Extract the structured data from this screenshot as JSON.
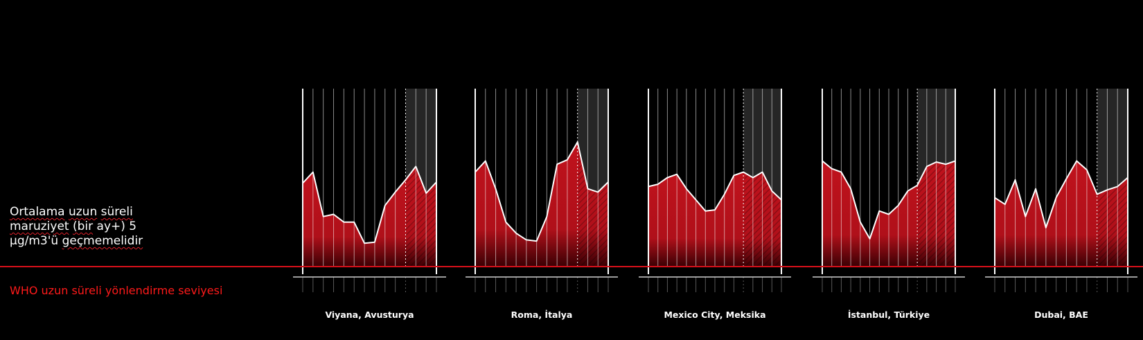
{
  "left_annotation": {
    "line1_words": [
      "Ortalama",
      "uzun",
      "süreli"
    ],
    "line2_words": [
      "maruziyet",
      "(bir",
      "ay+)",
      "5"
    ],
    "line3_words": [
      "µg/m3'ü",
      "geçmemelidir"
    ]
  },
  "who_label": "WHO uzun süreli yönlendirme seviyesi",
  "colors": {
    "background": "#000000",
    "area_fill": "#c0121c",
    "area_dark": "#7a0008",
    "line": "#ffffff",
    "threshold_line": "#d8101a",
    "who_text": "#ff1a1a"
  },
  "chart_data": [
    {
      "type": "area",
      "city": "Viyana, Avusturya",
      "values": [
        75,
        85,
        45,
        47,
        40,
        40,
        21,
        22,
        55,
        67,
        78,
        90,
        66,
        76
      ],
      "ylim": [
        0,
        160
      ],
      "shaded_from_index": 10
    },
    {
      "type": "area",
      "city": "Roma, İtalya",
      "values": [
        85,
        95,
        70,
        40,
        30,
        24,
        23,
        45,
        92,
        96,
        112,
        70,
        67,
        76
      ],
      "ylim": [
        0,
        160
      ],
      "shaded_from_index": 10
    },
    {
      "type": "area",
      "city": "Mexico City, Meksika",
      "values": [
        72,
        74,
        80,
        83,
        70,
        60,
        50,
        51,
        65,
        82,
        85,
        80,
        85,
        68,
        60
      ],
      "ylim": [
        0,
        160
      ],
      "shaded_from_index": 10
    },
    {
      "type": "area",
      "city": "İstanbul, Türkiye",
      "values": [
        95,
        88,
        85,
        70,
        40,
        25,
        50,
        47,
        55,
        68,
        73,
        90,
        94,
        92,
        95
      ],
      "ylim": [
        0,
        160
      ],
      "shaded_from_index": 10
    },
    {
      "type": "area",
      "city": "Dubai, BAE",
      "values": [
        62,
        56,
        78,
        45,
        70,
        35,
        62,
        79,
        95,
        87,
        65,
        69,
        72,
        80
      ],
      "ylim": [
        0,
        160
      ],
      "shaded_from_index": 10
    }
  ]
}
